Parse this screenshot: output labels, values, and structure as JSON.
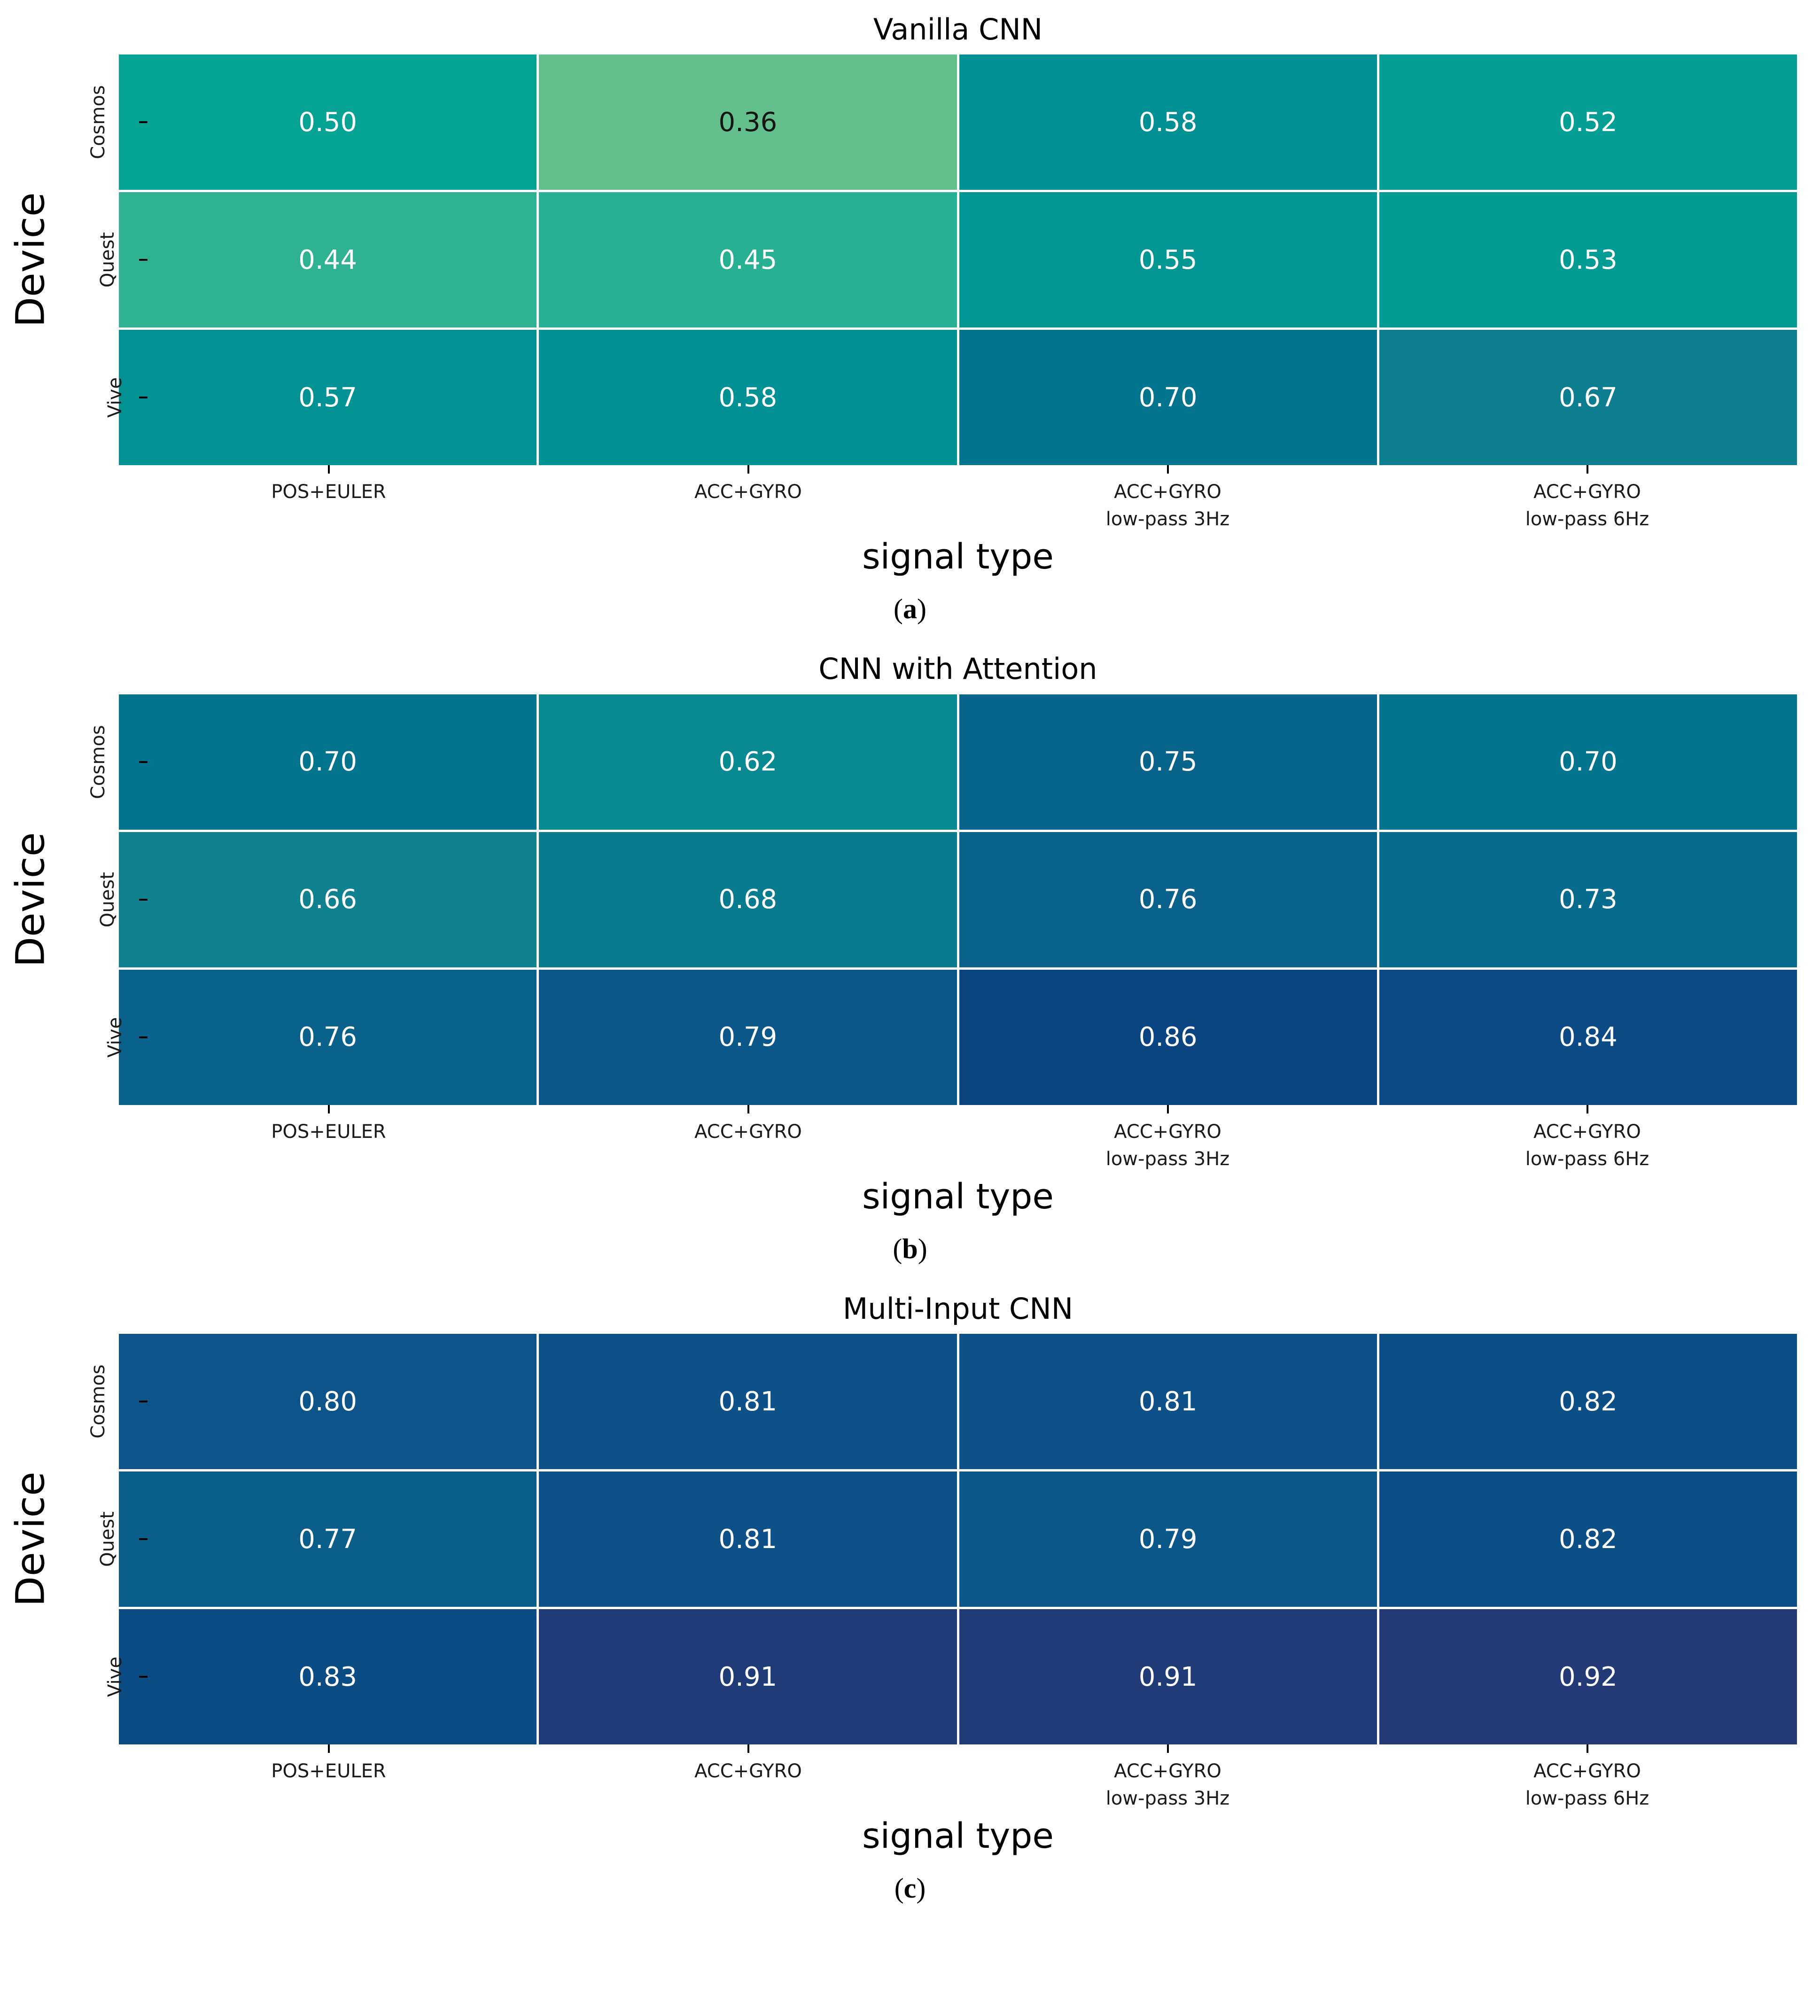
{
  "figure": {
    "ylabel": "Device",
    "xlabel": "signal type",
    "row_labels": [
      "Cosmos",
      "Quest",
      "Vive"
    ],
    "column_labels": [
      [
        "POS+EULER",
        ""
      ],
      [
        "ACC+GYRO",
        ""
      ],
      [
        "ACC+GYRO",
        "low-pass 3Hz"
      ],
      [
        "ACC+GYRO",
        "low-pass 6Hz"
      ]
    ]
  },
  "colormap": {
    "name": "crest-like green-to-navy",
    "domain": [
      0.36,
      0.92
    ],
    "stops": [
      {
        "v": 0.36,
        "c": [
          99,
          192,
          141
        ]
      },
      {
        "v": 0.45,
        "c": [
          40,
          176,
          146
        ]
      },
      {
        "v": 0.5,
        "c": [
          6,
          162,
          148
        ]
      },
      {
        "v": 0.58,
        "c": [
          1,
          144,
          147
        ]
      },
      {
        "v": 0.66,
        "c": [
          16,
          130,
          143
        ]
      },
      {
        "v": 0.7,
        "c": [
          2,
          116,
          142
        ]
      },
      {
        "v": 0.76,
        "c": [
          10,
          97,
          139
        ]
      },
      {
        "v": 0.81,
        "c": [
          13,
          81,
          136
        ]
      },
      {
        "v": 0.86,
        "c": [
          10,
          69,
          129
        ]
      },
      {
        "v": 0.92,
        "c": [
          35,
          58,
          118
        ]
      }
    ],
    "grid_color": "#ffffff",
    "text_light": "#ffffff",
    "text_dark": "#151515",
    "luminance_threshold": 140
  },
  "chart_data": [
    {
      "type": "heatmap",
      "title": "Vanilla CNN",
      "caption_open": "(",
      "caption": "a",
      "caption_close": ")",
      "xlabel": "signal type",
      "ylabel": "Device",
      "rows": [
        "Cosmos",
        "Quest",
        "Vive"
      ],
      "columns": [
        [
          "POS+EULER",
          ""
        ],
        [
          "ACC+GYRO",
          ""
        ],
        [
          "ACC+GYRO",
          "low-pass 3Hz"
        ],
        [
          "ACC+GYRO",
          "low-pass 6Hz"
        ]
      ],
      "values": [
        [
          0.5,
          0.36,
          0.58,
          0.52
        ],
        [
          0.44,
          0.45,
          0.55,
          0.53
        ],
        [
          0.57,
          0.58,
          0.7,
          0.67
        ]
      ],
      "labels": [
        [
          "0.50",
          "0.36",
          "0.58",
          "0.52"
        ],
        [
          "0.44",
          "0.45",
          "0.55",
          "0.53"
        ],
        [
          "0.57",
          "0.58",
          "0.70",
          "0.67"
        ]
      ]
    },
    {
      "type": "heatmap",
      "title": "CNN with Attention",
      "caption_open": "(",
      "caption": "b",
      "caption_close": ")",
      "xlabel": "signal type",
      "ylabel": "Device",
      "rows": [
        "Cosmos",
        "Quest",
        "Vive"
      ],
      "columns": [
        [
          "POS+EULER",
          ""
        ],
        [
          "ACC+GYRO",
          ""
        ],
        [
          "ACC+GYRO",
          "low-pass 3Hz"
        ],
        [
          "ACC+GYRO",
          "low-pass 6Hz"
        ]
      ],
      "values": [
        [
          0.7,
          0.62,
          0.75,
          0.7
        ],
        [
          0.66,
          0.68,
          0.76,
          0.73
        ],
        [
          0.76,
          0.79,
          0.86,
          0.84
        ]
      ],
      "labels": [
        [
          "0.70",
          "0.62",
          "0.75",
          "0.70"
        ],
        [
          "0.66",
          "0.68",
          "0.76",
          "0.73"
        ],
        [
          "0.76",
          "0.79",
          "0.86",
          "0.84"
        ]
      ]
    },
    {
      "type": "heatmap",
      "title": "Multi-Input CNN",
      "caption_open": "(",
      "caption": "c",
      "caption_close": ")",
      "xlabel": "signal type",
      "ylabel": "Device",
      "rows": [
        "Cosmos",
        "Quest",
        "Vive"
      ],
      "columns": [
        [
          "POS+EULER",
          ""
        ],
        [
          "ACC+GYRO",
          ""
        ],
        [
          "ACC+GYRO",
          "low-pass 3Hz"
        ],
        [
          "ACC+GYRO",
          "low-pass 6Hz"
        ]
      ],
      "values": [
        [
          0.8,
          0.81,
          0.81,
          0.82
        ],
        [
          0.77,
          0.81,
          0.79,
          0.82
        ],
        [
          0.83,
          0.91,
          0.91,
          0.92
        ]
      ],
      "labels": [
        [
          "0.80",
          "0.81",
          "0.81",
          "0.82"
        ],
        [
          "0.77",
          "0.81",
          "0.79",
          "0.82"
        ],
        [
          "0.83",
          "0.91",
          "0.91",
          "0.92"
        ]
      ]
    }
  ]
}
